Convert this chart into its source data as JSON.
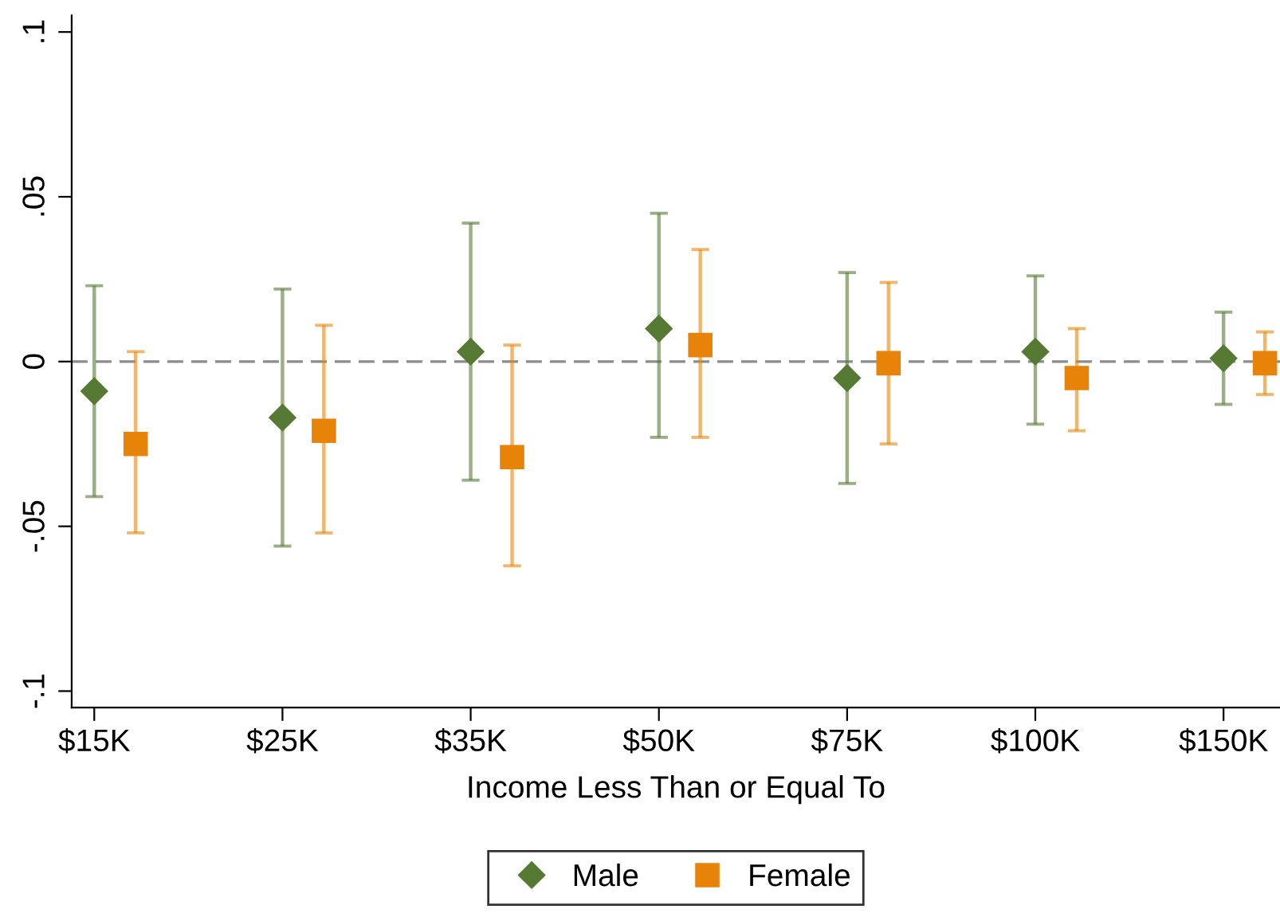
{
  "chart_data": {
    "type": "scatter",
    "xlabel": "Income Less Than or Equal To",
    "categories": [
      "$15K",
      "$25K",
      "$35K",
      "$50K",
      "$75K",
      "$100K",
      "$150K"
    ],
    "series": [
      {
        "name": "Male",
        "color": "#567a34",
        "marker": "diamond",
        "values": [
          -0.009,
          -0.017,
          0.003,
          0.01,
          -0.005,
          0.003,
          0.001
        ],
        "errors": [
          [
            -0.041,
            0.023
          ],
          [
            -0.056,
            0.022
          ],
          [
            -0.036,
            0.042
          ],
          [
            -0.023,
            0.045
          ],
          [
            -0.037,
            0.027
          ],
          [
            -0.019,
            0.026
          ],
          [
            -0.013,
            0.015
          ]
        ]
      },
      {
        "name": "Female",
        "color": "#e8830a",
        "marker": "square",
        "values": [
          -0.025,
          -0.021,
          -0.029,
          0.005,
          -0.0005,
          -0.005,
          -0.0005
        ],
        "errors": [
          [
            -0.052,
            0.003
          ],
          [
            -0.052,
            0.011
          ],
          [
            -0.062,
            0.005
          ],
          [
            -0.023,
            0.034
          ],
          [
            -0.025,
            0.024
          ],
          [
            -0.021,
            0.01
          ],
          [
            -0.01,
            0.009
          ]
        ]
      }
    ],
    "ylim": [
      -0.105,
      0.105
    ],
    "yticks": [
      {
        "value": -0.1,
        "label": "-.1"
      },
      {
        "value": -0.05,
        "label": "-.05"
      },
      0,
      {
        "value": 0.05,
        "label": ".05"
      },
      {
        "value": 0.1,
        "label": ".1"
      }
    ],
    "ref_lines": [
      {
        "axis": "y",
        "value": 0,
        "color": "#8c8c8c",
        "line_style": "dashed"
      }
    ],
    "grid": false,
    "legend": "bottom"
  }
}
